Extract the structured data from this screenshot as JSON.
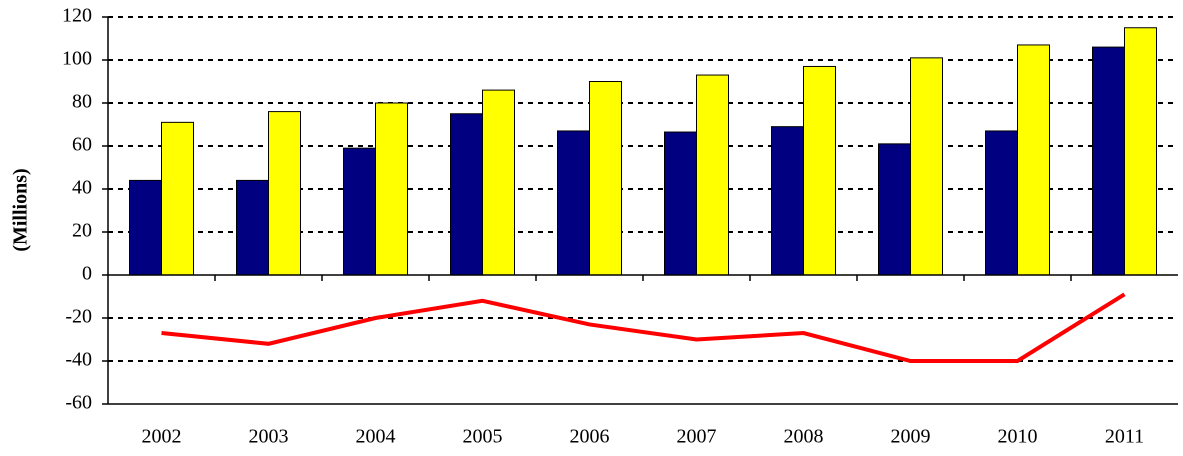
{
  "chart_data": {
    "type": "bar",
    "y_label": "(Millions)",
    "categories": [
      "2002",
      "2003",
      "2004",
      "2005",
      "2006",
      "2007",
      "2008",
      "2009",
      "2010",
      "2011"
    ],
    "series": [
      {
        "type": "bar",
        "color": "#000080",
        "values": [
          44,
          44,
          59,
          75,
          67,
          66.5,
          69,
          61,
          67,
          106
        ]
      },
      {
        "type": "bar",
        "color": "#ffff00",
        "values": [
          71,
          76,
          80,
          86,
          90,
          93,
          97,
          101,
          107,
          115
        ]
      },
      {
        "type": "line",
        "color": "#ff0000",
        "values": [
          -27,
          -32,
          -20,
          -12,
          -23,
          -30,
          -27,
          -40,
          -40,
          -9
        ]
      }
    ],
    "ylim": [
      -60,
      120
    ],
    "yticks": [
      -60,
      -40,
      -20,
      0,
      20,
      40,
      60,
      80,
      100,
      120
    ],
    "grid": true
  }
}
